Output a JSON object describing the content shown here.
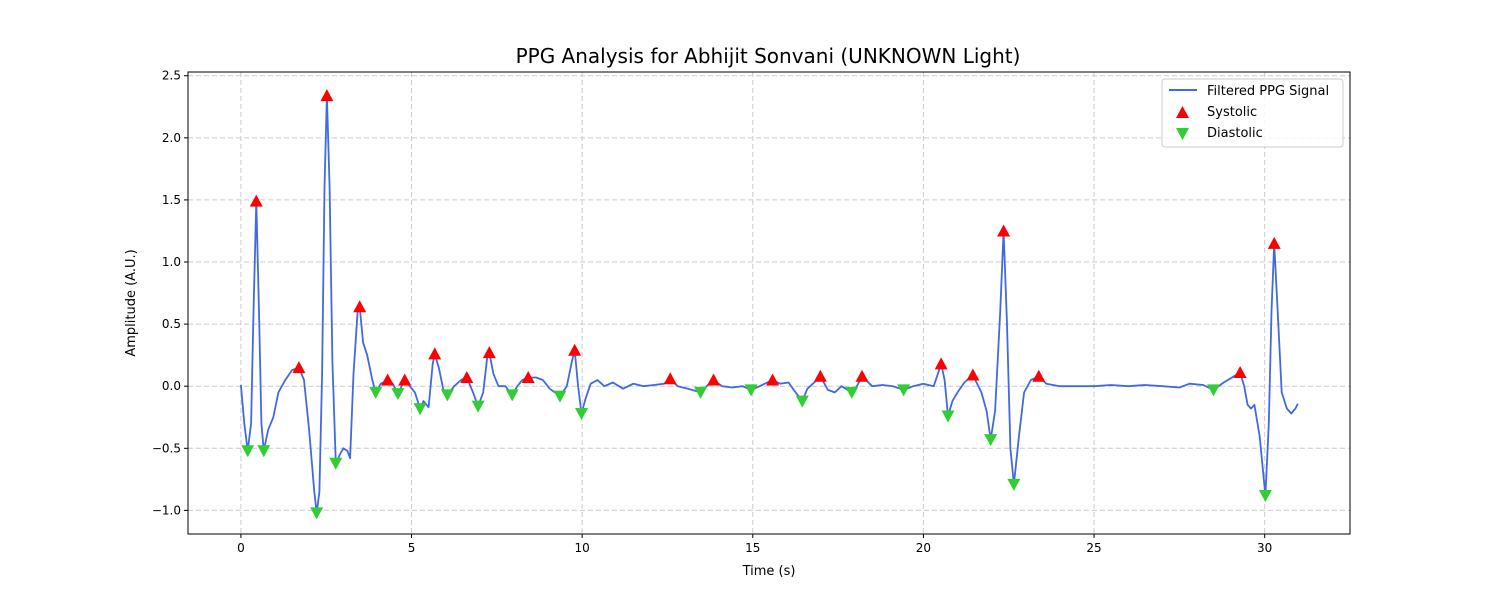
{
  "chart_data": {
    "type": "line",
    "title": "PPG Analysis for Abhijit Sonvani (UNKNOWN Light)",
    "xlabel": "Time (s)",
    "ylabel": "Amplitude (A.U.)",
    "xlim": [
      -1.55,
      32.5
    ],
    "ylim": [
      -1.19,
      2.53
    ],
    "xticks": [
      0,
      5,
      10,
      15,
      20,
      25,
      30
    ],
    "yticks": [
      -1.0,
      -0.5,
      0.0,
      0.5,
      1.0,
      1.5,
      2.0,
      2.5
    ],
    "ytick_labels": [
      "−1.0",
      "−0.5",
      "0.0",
      "0.5",
      "1.0",
      "1.5",
      "2.0",
      "2.5"
    ],
    "grid": true,
    "legend_position": "top-right",
    "colors": {
      "signal": "#4169e1",
      "systolic": "#ff0000",
      "diastolic": "#32cd32"
    },
    "series": [
      {
        "name": "Filtered PPG Signal",
        "kind": "line",
        "points": [
          [
            0,
            0.01
          ],
          [
            0.1,
            -0.3
          ],
          [
            0.2,
            -0.52
          ],
          [
            0.3,
            -0.3
          ],
          [
            0.37,
            0.6
          ],
          [
            0.45,
            1.49
          ],
          [
            0.53,
            0.6
          ],
          [
            0.6,
            -0.3
          ],
          [
            0.67,
            -0.52
          ],
          [
            0.8,
            -0.35
          ],
          [
            0.95,
            -0.25
          ],
          [
            1.1,
            -0.05
          ],
          [
            1.3,
            0.05
          ],
          [
            1.5,
            0.13
          ],
          [
            1.7,
            0.15
          ],
          [
            1.85,
            0.05
          ],
          [
            2.0,
            -0.35
          ],
          [
            2.15,
            -0.85
          ],
          [
            2.22,
            -1.02
          ],
          [
            2.3,
            -0.85
          ],
          [
            2.38,
            0.1
          ],
          [
            2.45,
            1.6
          ],
          [
            2.52,
            2.34
          ],
          [
            2.6,
            1.6
          ],
          [
            2.68,
            0.2
          ],
          [
            2.78,
            -0.62
          ],
          [
            2.9,
            -0.55
          ],
          [
            3.0,
            -0.5
          ],
          [
            3.12,
            -0.52
          ],
          [
            3.2,
            -0.58
          ],
          [
            3.3,
            0.1
          ],
          [
            3.42,
            0.6
          ],
          [
            3.48,
            0.64
          ],
          [
            3.58,
            0.35
          ],
          [
            3.7,
            0.25
          ],
          [
            3.85,
            0.05
          ],
          [
            3.95,
            -0.05
          ],
          [
            4.1,
            0.02
          ],
          [
            4.3,
            0.05
          ],
          [
            4.45,
            0.02
          ],
          [
            4.6,
            -0.06
          ],
          [
            4.8,
            0.05
          ],
          [
            4.95,
            0.0
          ],
          [
            5.1,
            -0.05
          ],
          [
            5.25,
            -0.18
          ],
          [
            5.35,
            -0.12
          ],
          [
            5.5,
            -0.17
          ],
          [
            5.62,
            0.18
          ],
          [
            5.68,
            0.26
          ],
          [
            5.8,
            0.15
          ],
          [
            5.95,
            -0.05
          ],
          [
            6.05,
            -0.07
          ],
          [
            6.25,
            0.0
          ],
          [
            6.45,
            0.05
          ],
          [
            6.62,
            0.07
          ],
          [
            6.8,
            -0.05
          ],
          [
            6.95,
            -0.16
          ],
          [
            7.1,
            -0.05
          ],
          [
            7.22,
            0.24
          ],
          [
            7.28,
            0.27
          ],
          [
            7.4,
            0.1
          ],
          [
            7.55,
            0.0
          ],
          [
            7.75,
            0.0
          ],
          [
            7.95,
            -0.07
          ],
          [
            8.1,
            0.0
          ],
          [
            8.25,
            0.05
          ],
          [
            8.42,
            0.07
          ],
          [
            8.65,
            0.07
          ],
          [
            8.85,
            0.05
          ],
          [
            9.05,
            -0.02
          ],
          [
            9.35,
            -0.08
          ],
          [
            9.55,
            0.0
          ],
          [
            9.7,
            0.2
          ],
          [
            9.78,
            0.29
          ],
          [
            9.88,
            0.0
          ],
          [
            9.98,
            -0.22
          ],
          [
            10.1,
            -0.1
          ],
          [
            10.25,
            0.02
          ],
          [
            10.45,
            0.05
          ],
          [
            10.65,
            0.0
          ],
          [
            10.9,
            0.03
          ],
          [
            11.2,
            -0.02
          ],
          [
            11.5,
            0.02
          ],
          [
            11.8,
            0.0
          ],
          [
            12.1,
            0.01
          ],
          [
            12.4,
            0.02
          ],
          [
            12.58,
            0.06
          ],
          [
            12.8,
            0.0
          ],
          [
            13.1,
            -0.02
          ],
          [
            13.47,
            -0.05
          ],
          [
            13.65,
            0.0
          ],
          [
            13.85,
            0.05
          ],
          [
            14.1,
            0.0
          ],
          [
            14.4,
            -0.01
          ],
          [
            14.7,
            0.0
          ],
          [
            14.95,
            -0.03
          ],
          [
            15.2,
            0.0
          ],
          [
            15.58,
            0.05
          ],
          [
            15.8,
            0.02
          ],
          [
            16.05,
            0.03
          ],
          [
            16.2,
            -0.03
          ],
          [
            16.45,
            -0.12
          ],
          [
            16.6,
            -0.02
          ],
          [
            16.8,
            0.03
          ],
          [
            16.98,
            0.08
          ],
          [
            17.2,
            -0.03
          ],
          [
            17.4,
            -0.05
          ],
          [
            17.6,
            0.0
          ],
          [
            17.9,
            -0.05
          ],
          [
            18.05,
            0.0
          ],
          [
            18.2,
            0.08
          ],
          [
            18.5,
            0.0
          ],
          [
            18.8,
            0.01
          ],
          [
            19.1,
            0.0
          ],
          [
            19.42,
            -0.03
          ],
          [
            19.7,
            0.0
          ],
          [
            20.0,
            0.02
          ],
          [
            20.3,
            0.0
          ],
          [
            20.52,
            0.18
          ],
          [
            20.62,
            0.05
          ],
          [
            20.72,
            -0.24
          ],
          [
            20.85,
            -0.12
          ],
          [
            21.0,
            -0.05
          ],
          [
            21.2,
            0.03
          ],
          [
            21.45,
            0.09
          ],
          [
            21.7,
            -0.05
          ],
          [
            21.85,
            -0.2
          ],
          [
            21.97,
            -0.43
          ],
          [
            22.1,
            -0.2
          ],
          [
            22.25,
            0.6
          ],
          [
            22.35,
            1.25
          ],
          [
            22.45,
            0.5
          ],
          [
            22.55,
            -0.5
          ],
          [
            22.65,
            -0.79
          ],
          [
            22.8,
            -0.4
          ],
          [
            22.95,
            -0.05
          ],
          [
            23.15,
            0.05
          ],
          [
            23.38,
            0.08
          ],
          [
            23.6,
            0.02
          ],
          [
            24.0,
            0.0
          ],
          [
            24.5,
            0.0
          ],
          [
            25.0,
            0.0
          ],
          [
            25.5,
            0.01
          ],
          [
            26.0,
            0.0
          ],
          [
            26.5,
            0.01
          ],
          [
            27.0,
            0.0
          ],
          [
            27.5,
            -0.01
          ],
          [
            27.8,
            0.02
          ],
          [
            28.2,
            0.01
          ],
          [
            28.5,
            -0.03
          ],
          [
            28.8,
            0.03
          ],
          [
            29.1,
            0.08
          ],
          [
            29.28,
            0.11
          ],
          [
            29.4,
            0.0
          ],
          [
            29.5,
            -0.15
          ],
          [
            29.6,
            -0.18
          ],
          [
            29.7,
            -0.15
          ],
          [
            29.85,
            -0.4
          ],
          [
            30.02,
            -0.88
          ],
          [
            30.12,
            -0.3
          ],
          [
            30.2,
            0.6
          ],
          [
            30.28,
            1.15
          ],
          [
            30.38,
            0.6
          ],
          [
            30.5,
            -0.05
          ],
          [
            30.65,
            -0.18
          ],
          [
            30.78,
            -0.22
          ],
          [
            30.9,
            -0.18
          ],
          [
            30.97,
            -0.14
          ]
        ]
      },
      {
        "name": "Systolic",
        "kind": "marker-up",
        "points": [
          [
            0.45,
            1.49
          ],
          [
            2.52,
            2.34
          ],
          [
            3.48,
            0.64
          ],
          [
            1.7,
            0.15
          ],
          [
            4.3,
            0.05
          ],
          [
            4.8,
            0.05
          ],
          [
            5.68,
            0.26
          ],
          [
            6.62,
            0.07
          ],
          [
            7.28,
            0.27
          ],
          [
            8.42,
            0.07
          ],
          [
            9.78,
            0.29
          ],
          [
            12.58,
            0.06
          ],
          [
            13.85,
            0.05
          ],
          [
            15.58,
            0.05
          ],
          [
            16.98,
            0.08
          ],
          [
            18.2,
            0.08
          ],
          [
            20.52,
            0.18
          ],
          [
            21.45,
            0.09
          ],
          [
            22.35,
            1.25
          ],
          [
            23.38,
            0.08
          ],
          [
            29.28,
            0.11
          ],
          [
            30.28,
            1.15
          ]
        ]
      },
      {
        "name": "Diastolic",
        "kind": "marker-down",
        "points": [
          [
            0.2,
            -0.52
          ],
          [
            0.67,
            -0.52
          ],
          [
            2.22,
            -1.02
          ],
          [
            2.78,
            -0.62
          ],
          [
            3.95,
            -0.05
          ],
          [
            4.6,
            -0.06
          ],
          [
            5.25,
            -0.18
          ],
          [
            6.05,
            -0.07
          ],
          [
            6.95,
            -0.16
          ],
          [
            7.95,
            -0.07
          ],
          [
            9.35,
            -0.08
          ],
          [
            9.98,
            -0.22
          ],
          [
            13.47,
            -0.05
          ],
          [
            14.95,
            -0.03
          ],
          [
            16.45,
            -0.12
          ],
          [
            17.9,
            -0.05
          ],
          [
            19.42,
            -0.03
          ],
          [
            20.72,
            -0.24
          ],
          [
            21.97,
            -0.43
          ],
          [
            22.65,
            -0.79
          ],
          [
            28.5,
            -0.03
          ],
          [
            30.02,
            -0.88
          ]
        ]
      }
    ]
  }
}
